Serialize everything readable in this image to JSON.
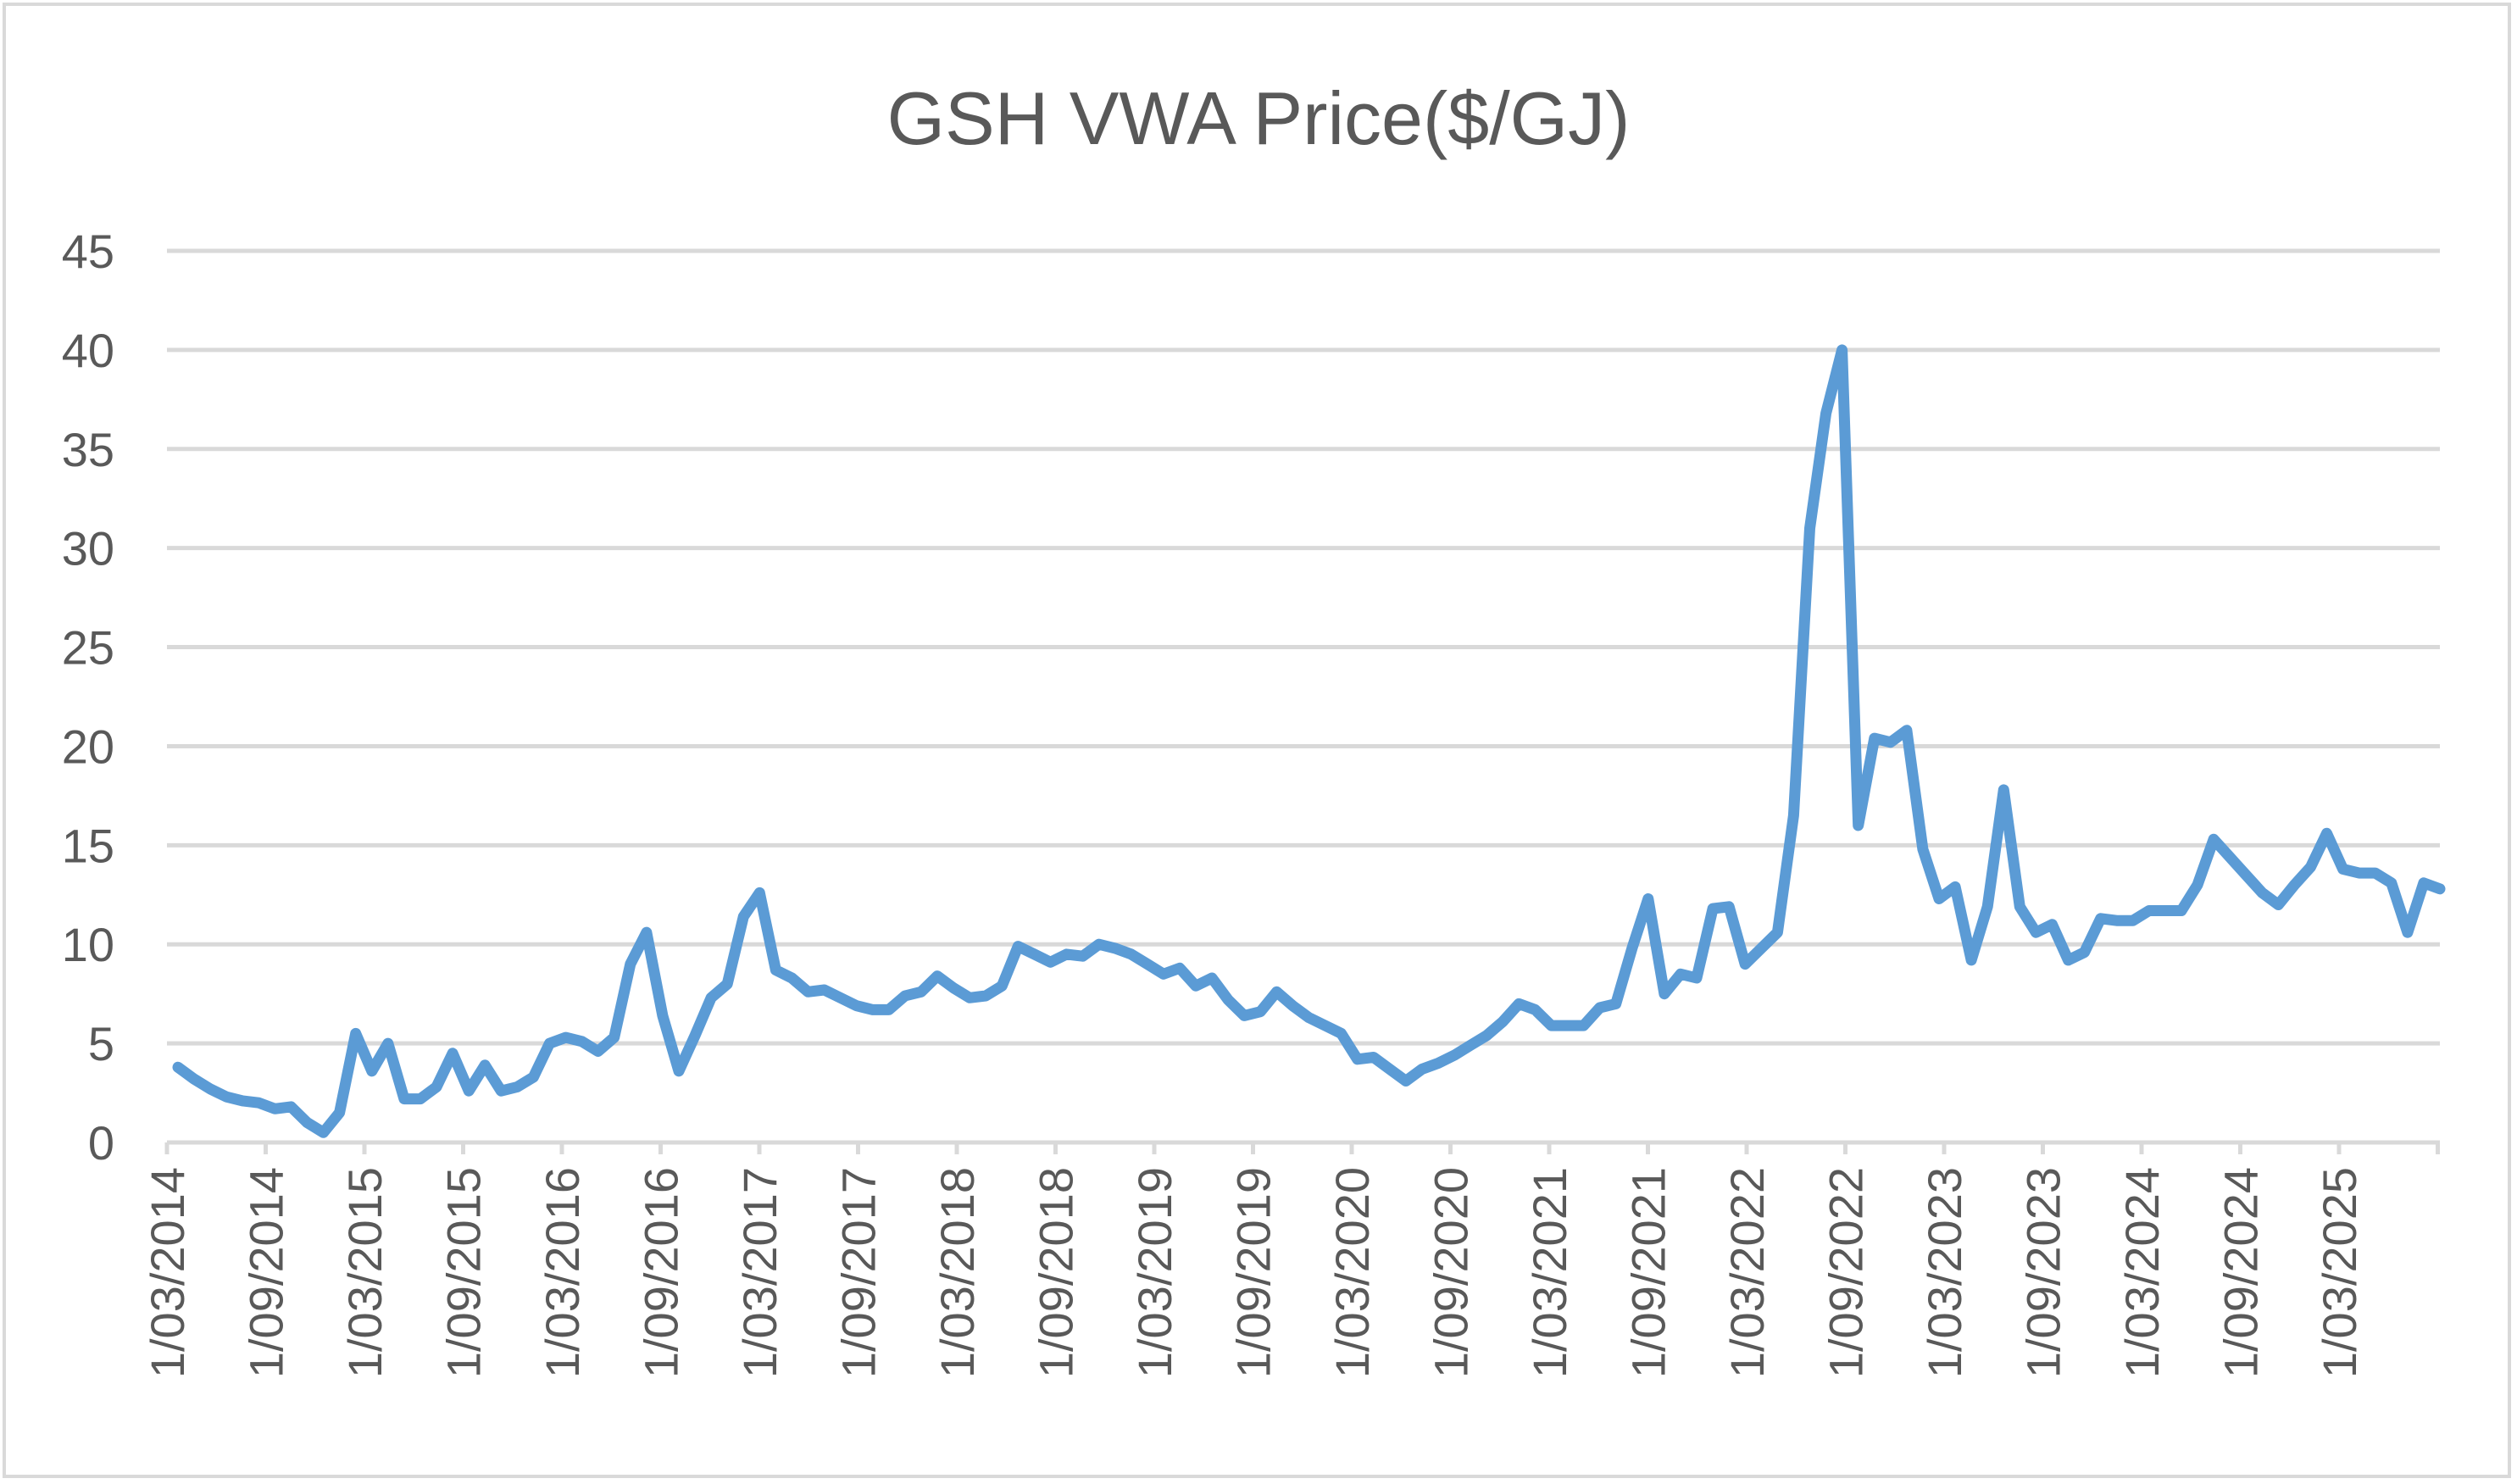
{
  "chart_data": {
    "type": "line",
    "title": "GSH VWA Price($/GJ)",
    "xlabel": "",
    "ylabel": "",
    "ylim": [
      0,
      45
    ],
    "yticks": [
      0,
      5,
      10,
      15,
      20,
      25,
      30,
      35,
      40,
      45
    ],
    "grid": true,
    "legend": "none",
    "x_tick_labels": [
      "1/03/2014",
      "1/09/2014",
      "1/03/2015",
      "1/09/2015",
      "1/03/2016",
      "1/09/2016",
      "1/03/2017",
      "1/09/2017",
      "1/03/2018",
      "1/09/2018",
      "1/03/2019",
      "1/09/2019",
      "1/03/2020",
      "1/09/2020",
      "1/03/2021",
      "1/09/2021",
      "1/03/2022",
      "1/09/2022",
      "1/03/2023",
      "1/09/2023",
      "1/03/2024",
      "1/09/2024",
      "1/03/2025"
    ],
    "series": [
      {
        "name": "GSH VWA Price($/GJ)",
        "color": "#5b9bd5",
        "values": [
          3.8,
          3.2,
          2.7,
          2.3,
          2.1,
          2.0,
          1.7,
          1.8,
          1.0,
          0.5,
          1.5,
          5.5,
          3.6,
          5.0,
          2.2,
          2.2,
          2.8,
          4.5,
          2.6,
          3.9,
          2.6,
          2.8,
          3.3,
          5.0,
          5.3,
          5.1,
          4.6,
          5.3,
          9.0,
          10.6,
          6.4,
          3.6,
          5.4,
          7.3,
          8.0,
          11.4,
          12.6,
          8.7,
          8.3,
          7.6,
          7.7,
          7.3,
          6.9,
          6.7,
          6.7,
          7.4,
          7.6,
          8.4,
          7.8,
          7.3,
          7.4,
          7.9,
          9.9,
          9.5,
          9.1,
          9.5,
          9.4,
          10.0,
          9.8,
          9.5,
          9.0,
          8.5,
          8.8,
          7.9,
          8.3,
          7.2,
          6.4,
          6.6,
          7.6,
          6.9,
          6.3,
          5.9,
          5.5,
          4.2,
          4.3,
          3.7,
          3.1,
          3.7,
          4.0,
          4.4,
          4.9,
          5.4,
          6.1,
          7.0,
          6.7,
          5.9,
          5.9,
          5.9,
          6.8,
          7.0,
          9.8,
          12.3,
          7.5,
          8.5,
          8.3,
          11.8,
          11.9,
          9.0,
          9.8,
          10.6,
          16.5,
          31.0,
          36.8,
          40.0,
          16.0,
          20.4,
          20.2,
          20.8,
          14.8,
          12.3,
          12.9,
          9.2,
          11.9,
          17.8,
          11.9,
          10.6,
          11.0,
          9.2,
          9.6,
          11.3,
          11.2,
          11.2,
          11.7,
          11.7,
          11.7,
          13.0,
          15.3,
          14.4,
          13.5,
          12.6,
          12.0,
          13.0,
          13.9,
          15.6,
          13.8,
          13.6,
          13.6,
          13.1,
          10.6,
          13.1,
          12.8
        ]
      }
    ]
  }
}
